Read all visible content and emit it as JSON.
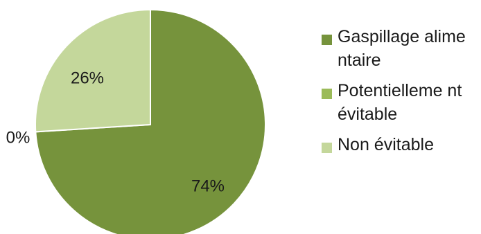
{
  "chart_data": {
    "type": "pie",
    "title": "",
    "categories": [
      "Gaspillage alimentaire",
      "Potentiellement évitable",
      "Non évitable"
    ],
    "values": [
      74,
      0,
      26
    ],
    "data_labels": [
      "74%",
      "0%",
      "26%"
    ],
    "colors": [
      "#76933c",
      "#9bbb59",
      "#c4d79b"
    ],
    "legend_position": "right",
    "legend_display": [
      "Gaspillage alimentaire",
      "Potentielleme nt évitable",
      "Non évitable"
    ]
  }
}
